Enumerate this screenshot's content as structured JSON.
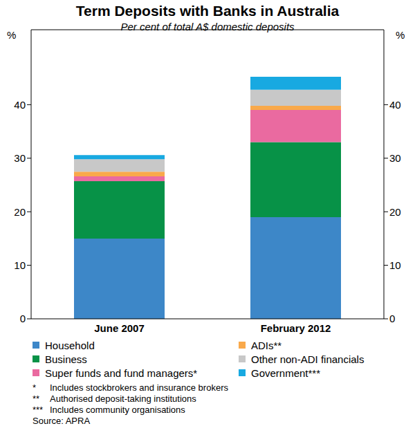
{
  "chart_data": {
    "type": "bar",
    "title": "Term Deposits with Banks in Australia",
    "subtitle": "Per cent of total A$ domestic deposits",
    "ylabel": "%",
    "y2label": "%",
    "categories": [
      "June 2007",
      "February 2012"
    ],
    "series": [
      {
        "name": "Household",
        "color": "#3d87c8",
        "values": [
          15,
          19
        ]
      },
      {
        "name": "Business",
        "color": "#079247",
        "values": [
          10.7,
          14
        ]
      },
      {
        "name": "Super funds and fund managers*",
        "color": "#ea6aa0",
        "values": [
          0.9,
          6
        ]
      },
      {
        "name": "ADIs**",
        "color": "#f9a94b",
        "values": [
          0.9,
          0.8
        ]
      },
      {
        "name": "Other non-ADI financials",
        "color": "#c8c8c8",
        "values": [
          2.3,
          3
        ]
      },
      {
        "name": "Government***",
        "color": "#18a9e1",
        "values": [
          0.8,
          2.4
        ]
      }
    ],
    "stacked": true,
    "legend": "bottom",
    "grid": false,
    "ylim": [
      0,
      54
    ],
    "yticks": [
      0,
      10,
      20,
      30,
      40
    ],
    "y2lim": [
      0,
      54
    ],
    "y2ticks": [
      0,
      10,
      20,
      30,
      40
    ],
    "notes": [
      {
        "mark": "*",
        "text": "Includes stockbrokers and insurance brokers"
      },
      {
        "mark": "**",
        "text": "Authorised deposit-taking institutions"
      },
      {
        "mark": "***",
        "text": "Includes community organisations"
      }
    ],
    "source": "Source: APRA"
  }
}
